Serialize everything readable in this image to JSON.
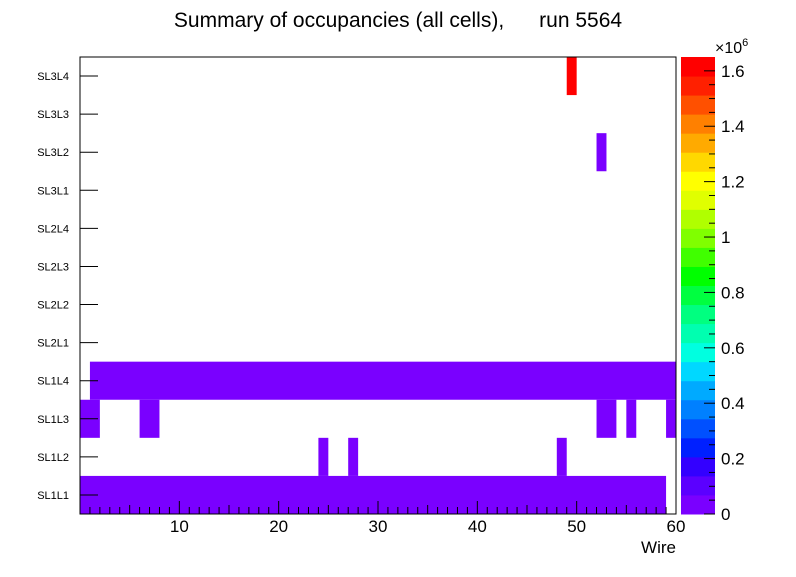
{
  "chart_data": {
    "type": "heatmap",
    "title": "Summary of occupancies (all cells),      run 5564",
    "xlabel": "Wire",
    "ylabel": "",
    "x_range": [
      0,
      60
    ],
    "x_ticks": [
      10,
      20,
      30,
      40,
      50,
      60
    ],
    "y_categories": [
      "SL1L1",
      "SL1L2",
      "SL1L3",
      "SL1L4",
      "SL2L1",
      "SL2L2",
      "SL2L3",
      "SL2L4",
      "SL3L1",
      "SL3L2",
      "SL3L3",
      "SL3L4"
    ],
    "z_range": [
      0,
      1650000
    ],
    "z_ticks": [
      0,
      0.2,
      0.4,
      0.6,
      0.8,
      1,
      1.2,
      1.4,
      1.6
    ],
    "z_exponent_label": "×10",
    "z_exponent_power": "6",
    "palette": [
      "#7a00ff",
      "#5b00ff",
      "#3300ff",
      "#0020ff",
      "#0050ff",
      "#0080ff",
      "#00aaff",
      "#00d8ff",
      "#00ffe0",
      "#00ffb0",
      "#00ff80",
      "#00ff40",
      "#00ff00",
      "#40ff00",
      "#80ff00",
      "#b0ff00",
      "#e0ff00",
      "#ffff00",
      "#ffd800",
      "#ffaa00",
      "#ff8000",
      "#ff5000",
      "#ff2000",
      "#ff0000"
    ],
    "cells": [
      {
        "row": "SL1L1",
        "x0": 0,
        "x1": 59,
        "z": 50000
      },
      {
        "row": "SL1L2",
        "x0": 24,
        "x1": 25,
        "z": 50000
      },
      {
        "row": "SL1L2",
        "x0": 27,
        "x1": 28,
        "z": 50000
      },
      {
        "row": "SL1L2",
        "x0": 48,
        "x1": 49,
        "z": 50000
      },
      {
        "row": "SL1L3",
        "x0": 0,
        "x1": 2,
        "z": 50000
      },
      {
        "row": "SL1L3",
        "x0": 6,
        "x1": 8,
        "z": 50000
      },
      {
        "row": "SL1L3",
        "x0": 52,
        "x1": 54,
        "z": 50000
      },
      {
        "row": "SL1L3",
        "x0": 55,
        "x1": 56,
        "z": 50000
      },
      {
        "row": "SL1L3",
        "x0": 59,
        "x1": 60,
        "z": 50000
      },
      {
        "row": "SL1L4",
        "x0": 1,
        "x1": 60,
        "z": 50000
      },
      {
        "row": "SL3L2",
        "x0": 52,
        "x1": 53,
        "z": 50000
      },
      {
        "row": "SL3L4",
        "x0": 49,
        "x1": 50,
        "z": 1600000
      }
    ]
  }
}
